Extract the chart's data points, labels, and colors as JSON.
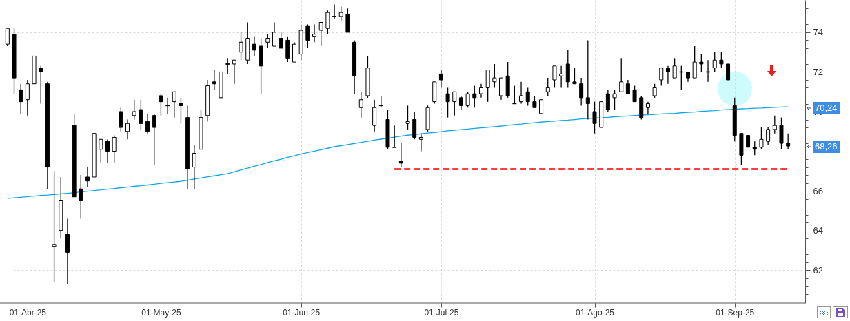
{
  "chart_data": {
    "type": "candlestick",
    "color": "#000000",
    "categories": [
      null,
      null,
      null,
      "01-Abr-25",
      null,
      null,
      null,
      null,
      null,
      null,
      null,
      null,
      null,
      null,
      null,
      null,
      null,
      null,
      null,
      null,
      null,
      null,
      null,
      "01-May-25",
      null,
      null,
      null,
      null,
      null,
      null,
      null,
      null,
      null,
      null,
      null,
      null,
      null,
      null,
      null,
      null,
      null,
      null,
      null,
      null,
      "01-Jun-25",
      null,
      null,
      null,
      null,
      null,
      null,
      null,
      null,
      null,
      null,
      null,
      null,
      null,
      null,
      null,
      null,
      null,
      null,
      null,
      null,
      "01-Jul-25",
      null,
      null,
      null,
      null,
      null,
      null,
      null,
      null,
      null,
      null,
      null,
      null,
      null,
      null,
      null,
      null,
      null,
      null,
      null,
      null,
      null,
      null,
      "01-Ago-25",
      null,
      null,
      null,
      null,
      null,
      null,
      null,
      null,
      null,
      null,
      null,
      null,
      null,
      null,
      null,
      null,
      null,
      null,
      null,
      null,
      "01-Sep-25",
      null,
      null,
      null,
      null,
      null,
      null,
      null,
      null
    ],
    "ohlc": [
      [
        73.4,
        74.2,
        73.3,
        74.2
      ],
      [
        73.9,
        74.2,
        70.9,
        71.7
      ],
      [
        71.1,
        71.4,
        69.9,
        70.5
      ],
      [
        70.6,
        71.6,
        69.8,
        71.4
      ],
      [
        71.4,
        72.8,
        71.4,
        72.8
      ],
      [
        72.2,
        72.3,
        70.4,
        72.0
      ],
      [
        71.4,
        71.5,
        66.1,
        67.2
      ],
      [
        63.2,
        67.0,
        61.4,
        63.3
      ],
      [
        64.0,
        66.7,
        63.6,
        65.5
      ],
      [
        63.8,
        64.6,
        61.3,
        62.9
      ],
      [
        69.3,
        69.9,
        65.7,
        65.7
      ],
      [
        66.1,
        66.8,
        64.6,
        65.5
      ],
      [
        66.7,
        67.2,
        66.2,
        66.5
      ],
      [
        66.7,
        68.9,
        66.7,
        68.9
      ],
      [
        68.1,
        68.6,
        67.4,
        68.6
      ],
      [
        68.5,
        68.6,
        67.4,
        68.0
      ],
      [
        68.0,
        68.8,
        67.4,
        68.7
      ],
      [
        70.0,
        70.2,
        69.0,
        69.2
      ],
      [
        69.0,
        69.6,
        68.6,
        69.4
      ],
      [
        69.8,
        70.6,
        69.6,
        70.0
      ],
      [
        70.1,
        70.6,
        69.1,
        69.4
      ],
      [
        69.5,
        69.9,
        68.9,
        69.0
      ],
      [
        69.8,
        69.9,
        67.3,
        69.2
      ],
      [
        70.8,
        70.9,
        69.8,
        70.5
      ],
      [
        70.3,
        70.7,
        69.9,
        70.3
      ],
      [
        70.5,
        71.0,
        69.7,
        71.0
      ],
      [
        70.4,
        70.7,
        69.4,
        70.3
      ],
      [
        69.7,
        70.3,
        66.1,
        67.1
      ],
      [
        67.2,
        68.3,
        66.1,
        67.9
      ],
      [
        68.1,
        70.1,
        68.1,
        69.7
      ],
      [
        69.8,
        71.6,
        69.5,
        71.3
      ],
      [
        71.5,
        72.1,
        71.1,
        71.4
      ],
      [
        70.7,
        72.0,
        70.7,
        72.0
      ],
      [
        72.4,
        72.7,
        71.9,
        72.4
      ],
      [
        72.4,
        72.6,
        71.4,
        72.6
      ],
      [
        73.0,
        74.0,
        72.6,
        73.5
      ],
      [
        72.6,
        74.5,
        72.4,
        73.7
      ],
      [
        73.4,
        73.8,
        72.8,
        73.1
      ],
      [
        73.3,
        73.7,
        70.9,
        72.3
      ],
      [
        73.5,
        73.9,
        73.2,
        73.7
      ],
      [
        73.3,
        74.5,
        73.3,
        74.0
      ],
      [
        73.7,
        74.0,
        73.2,
        73.2
      ],
      [
        73.6,
        73.8,
        72.5,
        72.7
      ],
      [
        72.5,
        73.5,
        72.5,
        73.4
      ],
      [
        72.9,
        74.4,
        72.6,
        74.1
      ],
      [
        74.3,
        74.4,
        73.2,
        73.6
      ],
      [
        73.8,
        74.4,
        73.5,
        73.9
      ],
      [
        74.1,
        74.5,
        73.3,
        74.5
      ],
      [
        74.2,
        75.1,
        73.9,
        75.0
      ],
      [
        74.8,
        75.4,
        74.7,
        74.8
      ],
      [
        74.8,
        75.3,
        74.6,
        75.0
      ],
      [
        74.9,
        75.2,
        74.0,
        74.0
      ],
      [
        73.5,
        73.6,
        70.9,
        71.8
      ],
      [
        70.2,
        71.0,
        69.7,
        70.6
      ],
      [
        70.8,
        72.8,
        70.7,
        72.2
      ],
      [
        69.3,
        70.6,
        69.0,
        70.2
      ],
      [
        70.3,
        70.8,
        70.2,
        70.3
      ],
      [
        69.6,
        70.1,
        68.1,
        68.2
      ],
      [
        68.2,
        69.3,
        68.2,
        68.2
      ],
      [
        67.5,
        68.4,
        67.2,
        67.4
      ],
      [
        69.4,
        70.3,
        69.1,
        69.5
      ],
      [
        69.6,
        70.0,
        68.6,
        68.7
      ],
      [
        68.6,
        68.9,
        68.0,
        68.7
      ],
      [
        69.1,
        70.3,
        69.0,
        70.2
      ],
      [
        70.5,
        71.5,
        70.4,
        71.5
      ],
      [
        71.9,
        72.1,
        71.2,
        71.6
      ],
      [
        70.9,
        71.2,
        69.7,
        70.5
      ],
      [
        70.5,
        71.0,
        69.8,
        71.0
      ],
      [
        70.7,
        70.8,
        70.1,
        70.3
      ],
      [
        70.3,
        71.0,
        70.2,
        70.9
      ],
      [
        70.9,
        71.3,
        70.2,
        70.7
      ],
      [
        70.9,
        71.4,
        70.7,
        71.2
      ],
      [
        71.2,
        72.1,
        70.5,
        72.1
      ],
      [
        71.5,
        72.4,
        71.2,
        71.7
      ],
      [
        70.8,
        71.7,
        70.6,
        71.7
      ],
      [
        71.8,
        72.5,
        70.7,
        70.8
      ],
      [
        70.4,
        71.3,
        70.4,
        70.4
      ],
      [
        70.5,
        71.5,
        70.4,
        70.8
      ],
      [
        71.0,
        71.2,
        70.3,
        70.5
      ],
      [
        70.5,
        70.8,
        70.2,
        70.2
      ],
      [
        69.9,
        70.6,
        69.9,
        70.6
      ],
      [
        71.0,
        71.7,
        70.8,
        71.2
      ],
      [
        71.6,
        72.3,
        71.2,
        72.3
      ],
      [
        71.8,
        72.3,
        71.2,
        71.9
      ],
      [
        72.4,
        73.1,
        71.2,
        71.5
      ],
      [
        71.5,
        72.2,
        71.4,
        71.4
      ],
      [
        71.4,
        71.7,
        70.3,
        70.7
      ],
      [
        70.7,
        73.6,
        69.6,
        70.4
      ],
      [
        70.0,
        70.5,
        68.9,
        69.4
      ],
      [
        69.2,
        70.5,
        69.2,
        70.5
      ],
      [
        70.9,
        71.1,
        70.0,
        70.1
      ],
      [
        70.7,
        71.1,
        70.1,
        70.9
      ],
      [
        71.0,
        72.7,
        71.0,
        71.5
      ],
      [
        71.4,
        71.6,
        70.9,
        70.9
      ],
      [
        71.1,
        71.3,
        70.5,
        70.5
      ],
      [
        70.7,
        70.8,
        69.6,
        69.7
      ],
      [
        70.2,
        70.5,
        69.9,
        70.4
      ],
      [
        70.8,
        71.4,
        70.7,
        71.2
      ],
      [
        71.6,
        72.2,
        71.3,
        72.2
      ],
      [
        72.2,
        72.3,
        71.4,
        72.0
      ],
      [
        71.7,
        72.7,
        71.7,
        72.3
      ],
      [
        72.0,
        72.3,
        71.1,
        72.0
      ],
      [
        72.0,
        72.0,
        71.5,
        71.7
      ],
      [
        71.7,
        73.3,
        71.7,
        72.5
      ],
      [
        72.5,
        72.9,
        72.0,
        72.4
      ],
      [
        72.0,
        72.6,
        71.5,
        72.0
      ],
      [
        72.2,
        73.0,
        72.0,
        72.6
      ],
      [
        72.6,
        73.0,
        72.2,
        72.4
      ],
      [
        72.4,
        72.4,
        71.6,
        71.6
      ],
      [
        70.3,
        70.7,
        68.5,
        68.8
      ],
      [
        68.9,
        68.9,
        67.3,
        67.8
      ],
      [
        68.8,
        68.8,
        68.2,
        68.2
      ],
      [
        68.2,
        68.5,
        67.8,
        68.1
      ],
      [
        68.2,
        69.2,
        68.1,
        68.6
      ],
      [
        68.5,
        69.2,
        68.3,
        69.1
      ],
      [
        69.1,
        69.8,
        68.9,
        69.3
      ],
      [
        69.3,
        69.7,
        68.1,
        68.4
      ],
      [
        68.4,
        68.9,
        68.1,
        68.26
      ]
    ],
    "series": [
      {
        "type": "line",
        "color": "#14a5e6",
        "line_style": "solid",
        "values": [
          65.62,
          65.65,
          65.68,
          65.71,
          65.74,
          65.77,
          65.79,
          65.82,
          65.85,
          65.88,
          65.91,
          65.95,
          65.98,
          66.02,
          66.05,
          66.09,
          66.12,
          66.16,
          66.19,
          66.23,
          66.26,
          66.3,
          66.34,
          66.38,
          66.42,
          66.45,
          66.49,
          66.54,
          66.6,
          66.65,
          66.71,
          66.76,
          66.82,
          66.87,
          66.96,
          67.06,
          67.15,
          67.24,
          67.33,
          67.43,
          67.52,
          67.6,
          67.69,
          67.77,
          67.86,
          67.94,
          68.01,
          68.08,
          68.15,
          68.23,
          68.28,
          68.34,
          68.39,
          68.45,
          68.5,
          68.56,
          68.61,
          68.66,
          68.71,
          68.76,
          68.81,
          68.84,
          68.88,
          68.92,
          68.95,
          68.99,
          69.03,
          69.06,
          69.09,
          69.12,
          69.15,
          69.18,
          69.21,
          69.24,
          69.27,
          69.31,
          69.34,
          69.37,
          69.41,
          69.44,
          69.47,
          69.5,
          69.52,
          69.55,
          69.57,
          69.6,
          69.63,
          69.65,
          69.67,
          69.69,
          69.71,
          69.74,
          69.76,
          69.78,
          69.8,
          69.82,
          69.84,
          69.86,
          69.88,
          69.9,
          69.91,
          69.94,
          69.96,
          69.98,
          70.01,
          70.03,
          70.05,
          70.08,
          70.1,
          70.12,
          70.14,
          70.15,
          70.17,
          70.18,
          70.2,
          70.21,
          70.23,
          70.24
        ]
      },
      {
        "type": "line",
        "color": "#ff0000",
        "line_style": "dashed",
        "values": [
          null,
          null,
          null,
          null,
          null,
          null,
          null,
          null,
          null,
          null,
          null,
          null,
          null,
          null,
          null,
          null,
          null,
          null,
          null,
          null,
          null,
          null,
          null,
          null,
          null,
          null,
          null,
          null,
          null,
          null,
          null,
          null,
          null,
          null,
          null,
          null,
          null,
          null,
          null,
          null,
          null,
          null,
          null,
          null,
          null,
          null,
          null,
          null,
          null,
          null,
          null,
          null,
          null,
          null,
          null,
          null,
          null,
          null,
          67.1,
          67.1,
          67.1,
          67.1,
          67.1,
          67.1,
          67.1,
          67.1,
          67.1,
          67.1,
          67.1,
          67.1,
          67.1,
          67.1,
          67.1,
          67.1,
          67.1,
          67.1,
          67.1,
          67.1,
          67.1,
          67.1,
          67.1,
          67.1,
          67.1,
          67.1,
          67.1,
          67.1,
          67.1,
          67.1,
          67.1,
          67.1,
          67.1,
          67.1,
          67.1,
          67.1,
          67.1,
          67.1,
          67.1,
          67.1,
          67.1,
          67.1,
          67.1,
          67.1,
          67.1,
          67.1,
          67.1,
          67.1,
          67.1,
          67.1,
          67.1,
          67.1,
          67.1,
          67.1,
          67.1,
          67.1,
          67.1,
          67.1,
          67.1,
          67.1
        ]
      }
    ],
    "ylim": [
      60.34,
      75.63
    ],
    "yticks": [
      {
        "value": 60.4,
        "label": null
      },
      {
        "value": 60.8,
        "label": null
      },
      {
        "value": 61.2,
        "label": null
      },
      {
        "value": 61.6,
        "label": null
      },
      62,
      {
        "value": 62.4,
        "label": null
      },
      {
        "value": 62.8,
        "label": null
      },
      {
        "value": 63.2,
        "label": null
      },
      {
        "value": 63.6,
        "label": null
      },
      64,
      {
        "value": 64.4,
        "label": null
      },
      {
        "value": 64.8,
        "label": null
      },
      {
        "value": 65.2,
        "label": null
      },
      {
        "value": 65.6,
        "label": null
      },
      66,
      {
        "value": 66.4,
        "label": null
      },
      {
        "value": 66.8,
        "label": null
      },
      {
        "value": 67.2,
        "label": null
      },
      {
        "value": 67.6,
        "label": null
      },
      {
        "value": 68,
        "label": null
      },
      {
        "value": 68.4,
        "label": null
      },
      {
        "value": 68.8,
        "label": null
      },
      {
        "value": 69.2,
        "label": null
      },
      {
        "value": 69.6,
        "label": null
      },
      70,
      {
        "value": 70.4,
        "label": null
      },
      {
        "value": 70.8,
        "label": null
      },
      {
        "value": 71.2,
        "label": null
      },
      {
        "value": 71.6,
        "label": null
      },
      72,
      {
        "value": 72.4,
        "label": null
      },
      {
        "value": 72.8,
        "label": null
      },
      {
        "value": 73.2,
        "label": null
      },
      {
        "value": 73.6,
        "label": null
      },
      74,
      {
        "value": 74.4,
        "label": null
      },
      {
        "value": 74.8,
        "label": null
      },
      {
        "value": 75.2,
        "label": null
      },
      {
        "value": 75.6,
        "label": null
      }
    ],
    "grid": true,
    "annotations": [
      "70,24",
      "68,26"
    ]
  }
}
